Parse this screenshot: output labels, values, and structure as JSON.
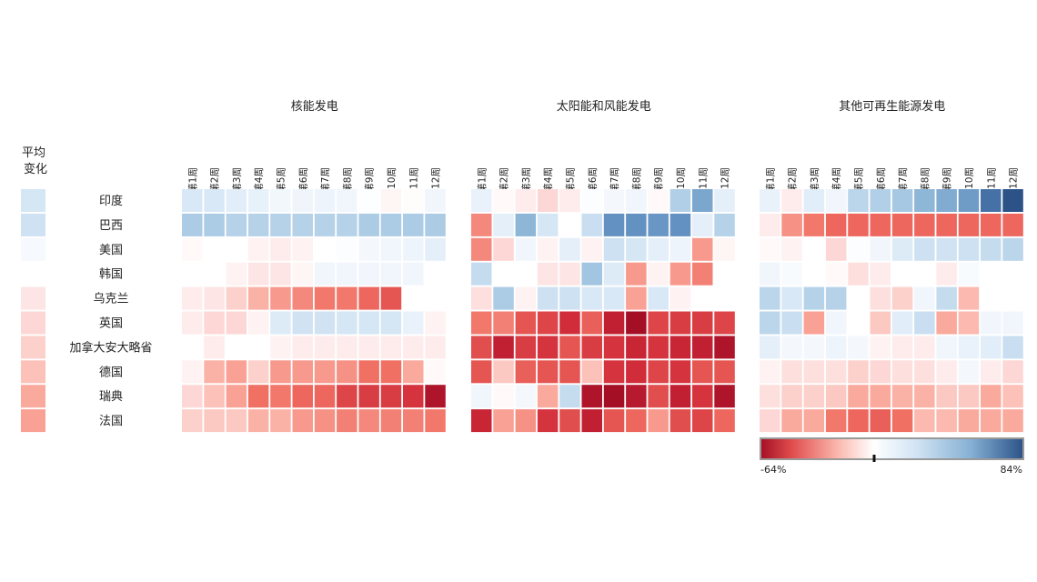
{
  "chart_data": {
    "type": "heatmap",
    "avg_label_line1": "平均",
    "avg_label_line2": "变化",
    "colorbar": {
      "min_label": "-64%",
      "max_label": "84%",
      "min": -64,
      "max": 84,
      "marker": 0
    },
    "colors": {
      "negative_end": "#a50f26",
      "mid": "#ffffff",
      "positive_end": "#2c5288"
    },
    "weeks": [
      "第1周",
      "第2周",
      "第3周",
      "第4周",
      "第5周",
      "第6周",
      "第7周",
      "第8周",
      "第9周",
      "第10周",
      "第11周",
      "第12周"
    ],
    "countries": [
      "印度",
      "巴西",
      "美国",
      "韩国",
      "乌克兰",
      "英国",
      "加拿大安大略省",
      "德国",
      "瑞典",
      "法国"
    ],
    "avg_change": [
      22,
      25,
      5,
      0,
      -8,
      -12,
      -14,
      -18,
      -24,
      -26
    ],
    "panels": [
      {
        "title": "核能发电",
        "values": [
          [
            20,
            20,
            16,
            13,
            7,
            9,
            10,
            8,
            1,
            -3,
            -1,
            8
          ],
          [
            40,
            40,
            36,
            36,
            36,
            36,
            36,
            36,
            40,
            40,
            40,
            40
          ],
          [
            -2,
            0,
            0,
            -4,
            -6,
            -4,
            0,
            2,
            6,
            8,
            10,
            14
          ],
          [
            0,
            0,
            -4,
            -8,
            -8,
            -3,
            8,
            8,
            8,
            8,
            8,
            0
          ],
          [
            -6,
            -8,
            -14,
            -22,
            -28,
            -32,
            -36,
            -36,
            -40,
            -44,
            0,
            0
          ],
          [
            -6,
            -12,
            -12,
            -4,
            18,
            24,
            24,
            22,
            22,
            22,
            12,
            -4
          ],
          [
            0,
            -6,
            0,
            0,
            -4,
            -6,
            -6,
            -6,
            -6,
            -6,
            -6,
            -6
          ],
          [
            -4,
            -22,
            -26,
            -14,
            -28,
            -28,
            -28,
            -30,
            -38,
            -38,
            -24,
            -2
          ],
          [
            -12,
            -18,
            -26,
            -38,
            -36,
            -40,
            -40,
            -48,
            -50,
            -50,
            -52,
            -62
          ],
          [
            -14,
            -16,
            -16,
            -22,
            -22,
            -28,
            -30,
            -34,
            -32,
            -34,
            -34,
            -36
          ]
        ]
      },
      {
        "title": "太阳能和风能发电",
        "values": [
          [
            12,
            -2,
            -6,
            -12,
            -6,
            2,
            6,
            8,
            -2,
            38,
            58,
            14
          ],
          [
            -32,
            14,
            52,
            22,
            0,
            28,
            66,
            66,
            64,
            66,
            14,
            36
          ],
          [
            -32,
            -12,
            8,
            -4,
            14,
            -4,
            26,
            22,
            14,
            10,
            -28,
            -3
          ],
          [
            30,
            0,
            0,
            -8,
            -8,
            44,
            18,
            -28,
            -4,
            -28,
            -34,
            0
          ],
          [
            -10,
            40,
            -4,
            26,
            26,
            20,
            20,
            -26,
            20,
            -4,
            0,
            0
          ],
          [
            -36,
            -34,
            -44,
            -48,
            -54,
            -42,
            -58,
            -64,
            -48,
            -50,
            -50,
            -48
          ],
          [
            -46,
            -58,
            -50,
            -52,
            -44,
            -50,
            -52,
            -56,
            -52,
            -56,
            -58,
            -62
          ],
          [
            -44,
            -16,
            -42,
            -44,
            -44,
            -18,
            -52,
            -54,
            -48,
            -52,
            -44,
            -44
          ],
          [
            8,
            -2,
            6,
            -24,
            30,
            -62,
            -64,
            -60,
            -46,
            -58,
            -52,
            -62
          ],
          [
            -56,
            -26,
            -30,
            -52,
            -46,
            -58,
            -44,
            -40,
            -28,
            -46,
            -48,
            -40
          ]
        ]
      },
      {
        "title": "其他可再生能源发电",
        "values": [
          [
            12,
            -6,
            16,
            8,
            34,
            38,
            42,
            52,
            56,
            62,
            76,
            84
          ],
          [
            -6,
            -30,
            -36,
            -40,
            -40,
            -40,
            -40,
            -40,
            -40,
            -40,
            -40,
            -40
          ],
          [
            -2,
            -4,
            0,
            -12,
            2,
            8,
            18,
            26,
            24,
            26,
            30,
            34
          ],
          [
            8,
            4,
            0,
            -2,
            -10,
            -6,
            0,
            0,
            -6,
            4,
            0,
            0
          ],
          [
            34,
            20,
            36,
            36,
            0,
            -10,
            -14,
            8,
            30,
            -20,
            0,
            0
          ],
          [
            34,
            28,
            -26,
            8,
            0,
            -16,
            16,
            28,
            -24,
            -20,
            8,
            8
          ],
          [
            14,
            6,
            6,
            10,
            6,
            -4,
            -6,
            -6,
            8,
            12,
            16,
            28
          ],
          [
            -4,
            -10,
            -10,
            -10,
            -14,
            -12,
            -10,
            -10,
            -6,
            6,
            -6,
            -12
          ],
          [
            -10,
            -14,
            -14,
            -16,
            -24,
            -24,
            -22,
            -22,
            -16,
            -16,
            -24,
            -18
          ],
          [
            -12,
            -24,
            -24,
            -36,
            -40,
            -42,
            -38,
            -20,
            -20,
            -24,
            -24,
            -24
          ]
        ]
      }
    ]
  }
}
